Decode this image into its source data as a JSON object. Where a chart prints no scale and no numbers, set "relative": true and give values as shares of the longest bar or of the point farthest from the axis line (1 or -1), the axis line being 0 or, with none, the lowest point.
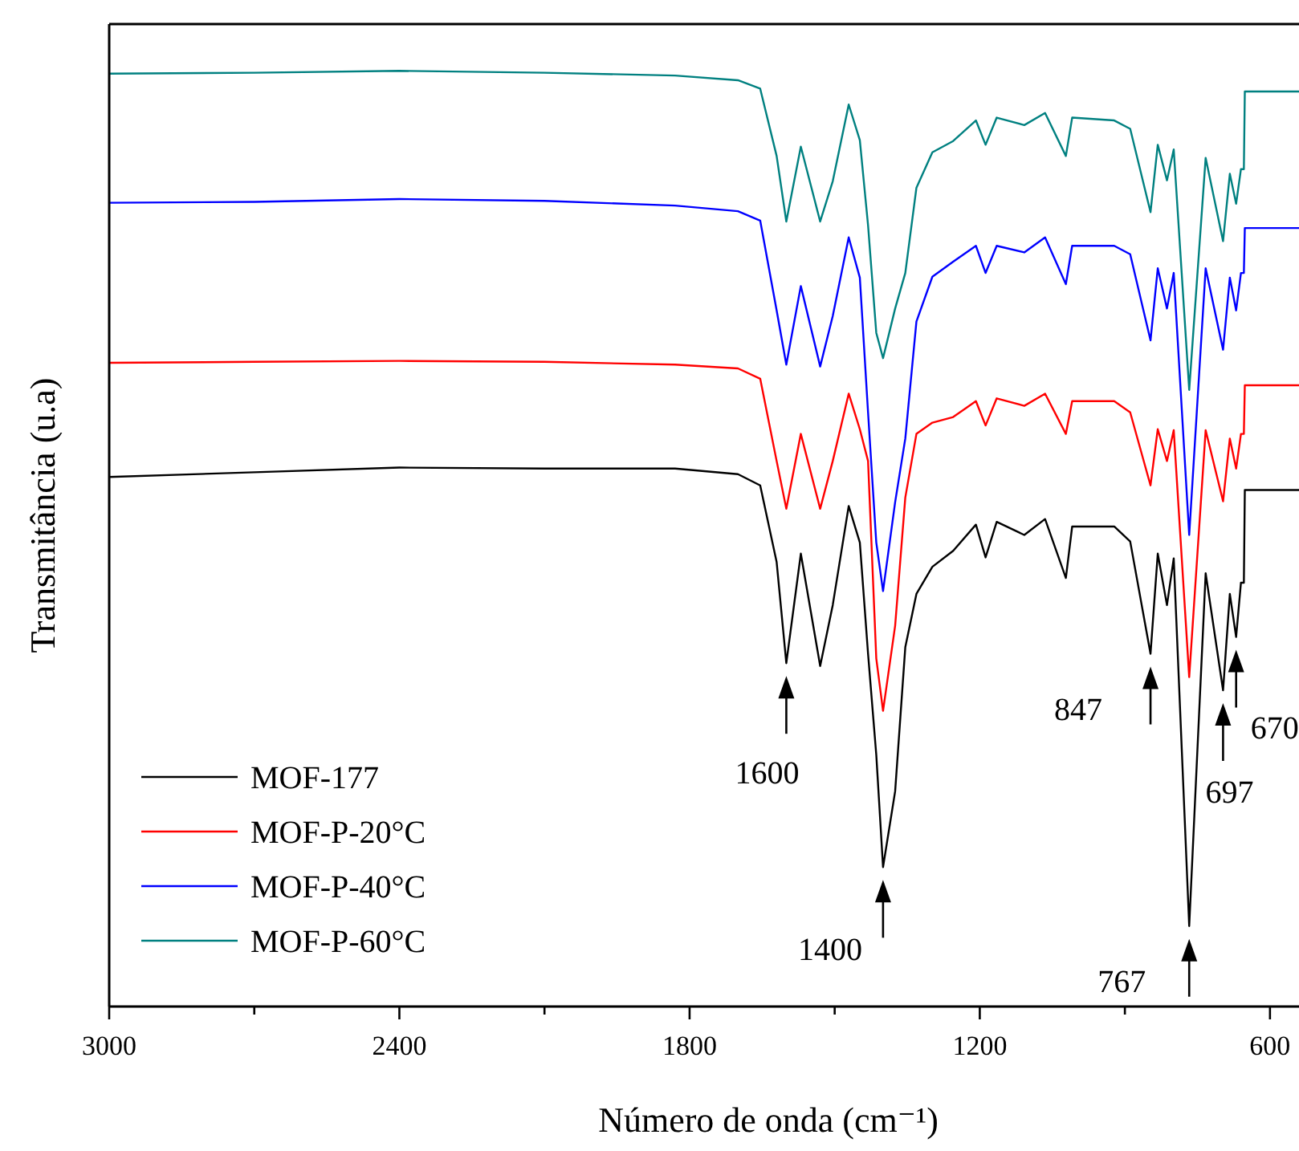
{
  "chart_data": {
    "type": "line",
    "relative": true,
    "xlabel": "Número de onda (cm⁻¹)",
    "ylabel": "Transmitância (u.a)",
    "xlim": [
      3000,
      540
    ],
    "xticks": [
      3000,
      {
        "value": 2700,
        "label": null
      },
      2400,
      {
        "value": 2100,
        "label": null
      },
      1800,
      {
        "value": 1500,
        "label": null
      },
      1200,
      {
        "value": 900,
        "label": null
      },
      600
    ],
    "legend": "bottom left",
    "x": [
      3000,
      2700,
      2400,
      2100,
      1830,
      1700,
      1654,
      1620,
      1600,
      1570,
      1530,
      1504,
      1471,
      1448,
      1431,
      1414,
      1400,
      1375,
      1354,
      1331,
      1298,
      1255,
      1208,
      1188,
      1165,
      1108,
      1065,
      1022,
      1009,
      922,
      889,
      847,
      832,
      813,
      799,
      767,
      733,
      697,
      683,
      670,
      660,
      654,
      652,
      540
    ],
    "series": [
      {
        "name": "MOF-177",
        "color": "#000000",
        "values": [
          0.566,
          0.571,
          0.576,
          0.575,
          0.575,
          0.569,
          0.557,
          0.475,
          0.367,
          0.484,
          0.364,
          0.429,
          0.535,
          0.496,
          0.377,
          0.269,
          0.149,
          0.23,
          0.384,
          0.441,
          0.47,
          0.487,
          0.515,
          0.48,
          0.518,
          0.504,
          0.521,
          0.458,
          0.513,
          0.513,
          0.497,
          0.377,
          0.484,
          0.429,
          0.479,
          0.086,
          0.463,
          0.338,
          0.441,
          0.395,
          0.453,
          0.453,
          0.552,
          0.552
        ]
      },
      {
        "name": "MOF-P-20°C",
        "color": "#ff0000",
        "values": [
          0.688,
          0.689,
          0.69,
          0.689,
          0.686,
          0.682,
          0.671,
          0.583,
          0.532,
          0.612,
          0.532,
          0.583,
          0.655,
          0.617,
          0.583,
          0.372,
          0.316,
          0.407,
          0.544,
          0.612,
          0.624,
          0.63,
          0.647,
          0.621,
          0.65,
          0.642,
          0.655,
          0.612,
          0.647,
          0.647,
          0.635,
          0.557,
          0.617,
          0.583,
          0.616,
          0.352,
          0.616,
          0.54,
          0.607,
          0.575,
          0.612,
          0.612,
          0.664,
          0.664
        ]
      },
      {
        "name": "MOF-P-40°C",
        "color": "#0000ff",
        "values": [
          0.859,
          0.86,
          0.863,
          0.861,
          0.856,
          0.85,
          0.84,
          0.744,
          0.686,
          0.77,
          0.684,
          0.738,
          0.822,
          0.779,
          0.635,
          0.496,
          0.444,
          0.539,
          0.607,
          0.732,
          0.78,
          0.796,
          0.813,
          0.784,
          0.813,
          0.806,
          0.822,
          0.772,
          0.813,
          0.813,
          0.804,
          0.712,
          0.789,
          0.746,
          0.784,
          0.504,
          0.789,
          0.702,
          0.779,
          0.744,
          0.784,
          0.784,
          0.832,
          0.832
        ]
      },
      {
        "name": "MOF-P-60°C",
        "color": "#008080",
        "values": [
          0.997,
          0.998,
          1.0,
          0.998,
          0.995,
          0.99,
          0.981,
          0.909,
          0.839,
          0.919,
          0.839,
          0.882,
          0.964,
          0.926,
          0.835,
          0.72,
          0.693,
          0.746,
          0.784,
          0.875,
          0.913,
          0.925,
          0.947,
          0.921,
          0.95,
          0.942,
          0.955,
          0.909,
          0.95,
          0.947,
          0.938,
          0.849,
          0.921,
          0.883,
          0.916,
          0.659,
          0.907,
          0.818,
          0.89,
          0.858,
          0.895,
          0.895,
          0.978,
          0.978
        ]
      }
    ],
    "annotations": [
      {
        "text": "1600",
        "x": 1600,
        "y": 0.367
      },
      {
        "text": "1400",
        "x": 1400,
        "y": 0.149
      },
      {
        "text": "847",
        "x": 847,
        "y": 0.377
      },
      {
        "text": "767",
        "x": 767,
        "y": 0.086
      },
      {
        "text": "697",
        "x": 697,
        "y": 0.338
      },
      {
        "text": "670",
        "x": 670,
        "y": 0.395
      }
    ]
  }
}
